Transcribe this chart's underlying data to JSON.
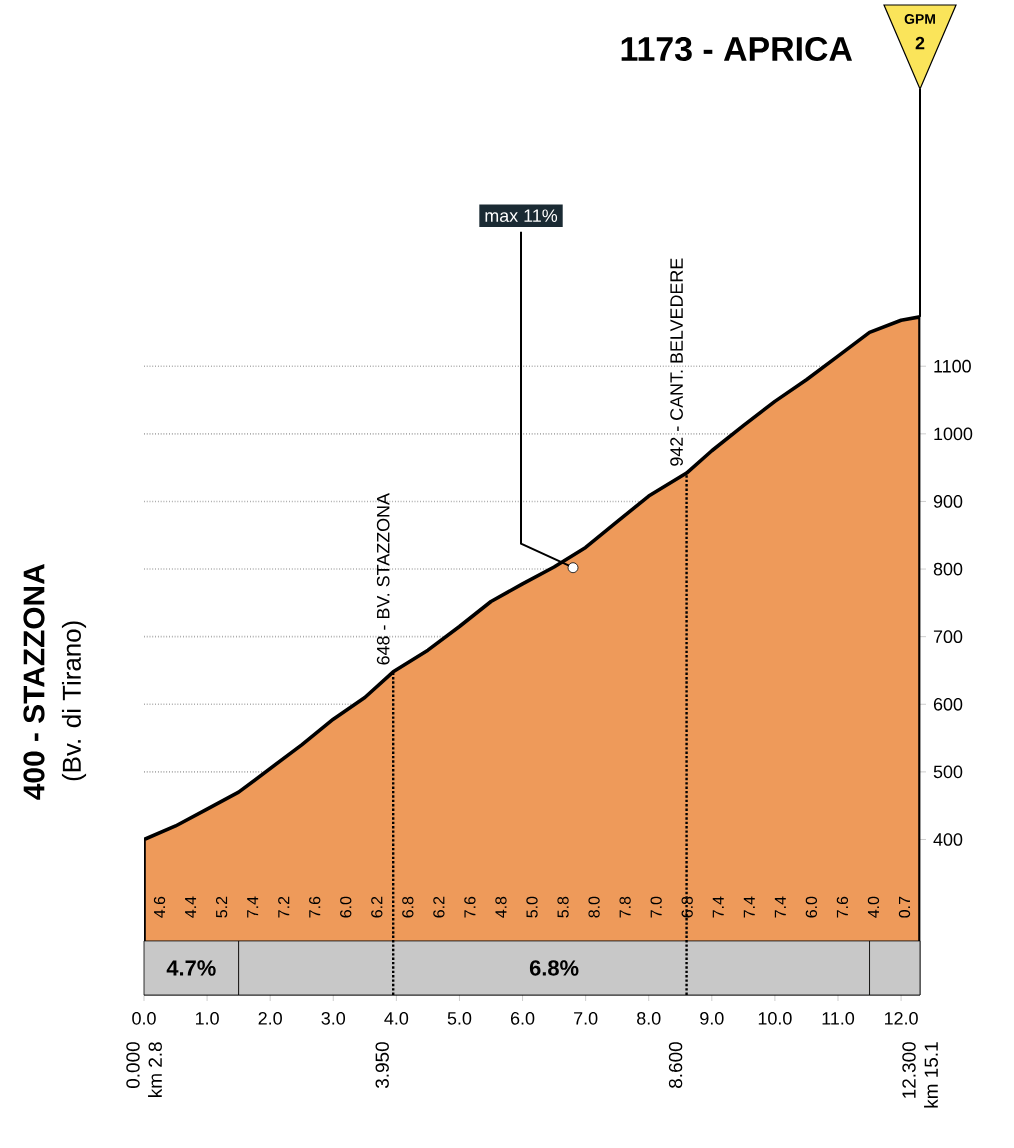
{
  "chart_data": {
    "type": "area",
    "x": [
      0,
      0.5,
      1.0,
      1.5,
      2.0,
      2.5,
      3.0,
      3.5,
      3.95,
      4.5,
      5.0,
      5.5,
      6.0,
      6.5,
      7.0,
      7.5,
      8.0,
      8.6,
      9.0,
      9.5,
      10.0,
      10.5,
      11.0,
      11.5,
      12.0,
      12.3
    ],
    "series": [
      {
        "color": "#ee9a5a",
        "values": [
          400,
          420,
          445,
          470,
          505,
          540,
          578,
          610,
          648,
          680,
          715,
          752,
          778,
          803,
          832,
          870,
          908,
          942,
          975,
          1012,
          1048,
          1080,
          1115,
          1150,
          1168,
          1173
        ]
      }
    ],
    "xlim": [
      0,
      12.3
    ],
    "ylim": [
      170,
      1300
    ],
    "xticks": [
      {
        "value": 0,
        "label": "0.0"
      },
      {
        "value": 1,
        "label": "1.0"
      },
      {
        "value": 2,
        "label": "2.0"
      },
      {
        "value": 3,
        "label": "3.0"
      },
      {
        "value": 4,
        "label": "4.0"
      },
      {
        "value": 5,
        "label": "5.0"
      },
      {
        "value": 6,
        "label": "6.0"
      },
      {
        "value": 7,
        "label": "7.0"
      },
      {
        "value": 8,
        "label": "8.0"
      },
      {
        "value": 9,
        "label": "9.0"
      },
      {
        "value": 10,
        "label": "10.0"
      },
      {
        "value": 11,
        "label": "11.0"
      },
      {
        "value": 12,
        "label": "12.0"
      }
    ],
    "yticks": [
      400,
      500,
      600,
      700,
      800,
      900,
      1000,
      1100
    ],
    "grid": "y",
    "ref_lines": [
      {
        "axis": "x",
        "value": 3.95,
        "label": "3.950",
        "line_style": "dotted"
      },
      {
        "axis": "x",
        "value": 8.6,
        "label": "8.600",
        "line_style": "dotted"
      }
    ],
    "bands": [
      {
        "axis": "x",
        "from": 0,
        "to": 1.5,
        "label": "4.7%",
        "color": "#c8c8c8"
      },
      {
        "axis": "x",
        "from": 1.5,
        "to": 11.5,
        "label": "6.8%",
        "color": "#c8c8c8"
      },
      {
        "axis": "x",
        "from": 11.5,
        "to": 12.3,
        "color": "#c8c8c8"
      }
    ],
    "annotations": [
      "1173 - APRICA",
      "GPM",
      "2",
      {
        "text": "max 11%",
        "x": 6.8,
        "y": 802
      },
      {
        "text": "942 - CANT. BELVEDERE",
        "x": 8.6,
        "y": 942
      },
      {
        "text": "648 - BV. STAZZONA",
        "x": 3.95,
        "y": 648
      },
      "400 - STAZZONA",
      "(Bv. di Tirano)",
      "km 2.8",
      "km 15.1",
      "4.6",
      "4.4",
      "5.2",
      "7.4",
      "7.2",
      "7.6",
      "6.0",
      "6.2",
      "6.8",
      "6.2",
      "7.6",
      "4.8",
      "5.0",
      "5.8",
      "8.0",
      "7.8",
      "7.0",
      "6.8",
      "7.4",
      "7.4",
      "7.4",
      "6.0",
      "7.6",
      "4.0",
      "0.7",
      "0.000",
      "12.300"
    ]
  }
}
